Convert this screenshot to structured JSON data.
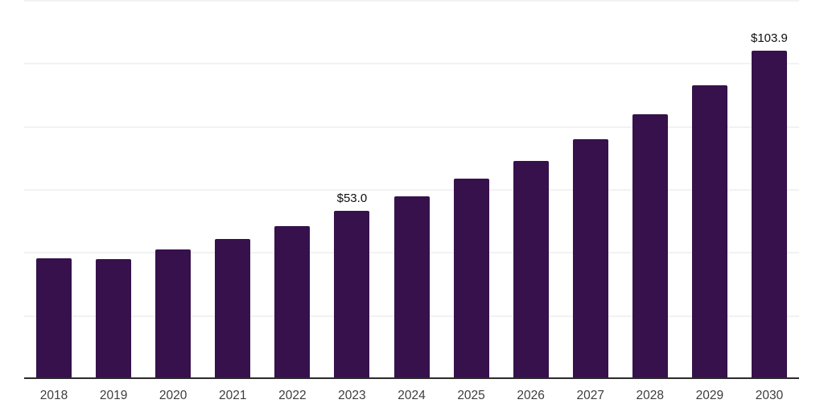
{
  "chart_data": {
    "type": "bar",
    "title": "",
    "xlabel": "",
    "ylabel": "",
    "categories": [
      "2018",
      "2019",
      "2020",
      "2021",
      "2022",
      "2023",
      "2024",
      "2025",
      "2026",
      "2027",
      "2028",
      "2029",
      "2030"
    ],
    "values": [
      38.0,
      37.7,
      40.8,
      44.1,
      48.2,
      53.0,
      57.8,
      63.2,
      69.0,
      75.9,
      83.8,
      93.0,
      103.9
    ],
    "data_labels": {
      "2023": "$53.0",
      "2030": "$103.9"
    },
    "ylim": [
      0,
      120
    ],
    "gridline_step": 20,
    "grid": "horizontal-only",
    "y_tick_labels_visible": false,
    "legend": "none",
    "colors": {
      "bar": "#36114B",
      "grid": "#f2f2f2",
      "axis": "#2b2b2b",
      "tick_label": "#3d3d3d",
      "data_label": "#0f0f0f",
      "background": "#ffffff"
    }
  }
}
